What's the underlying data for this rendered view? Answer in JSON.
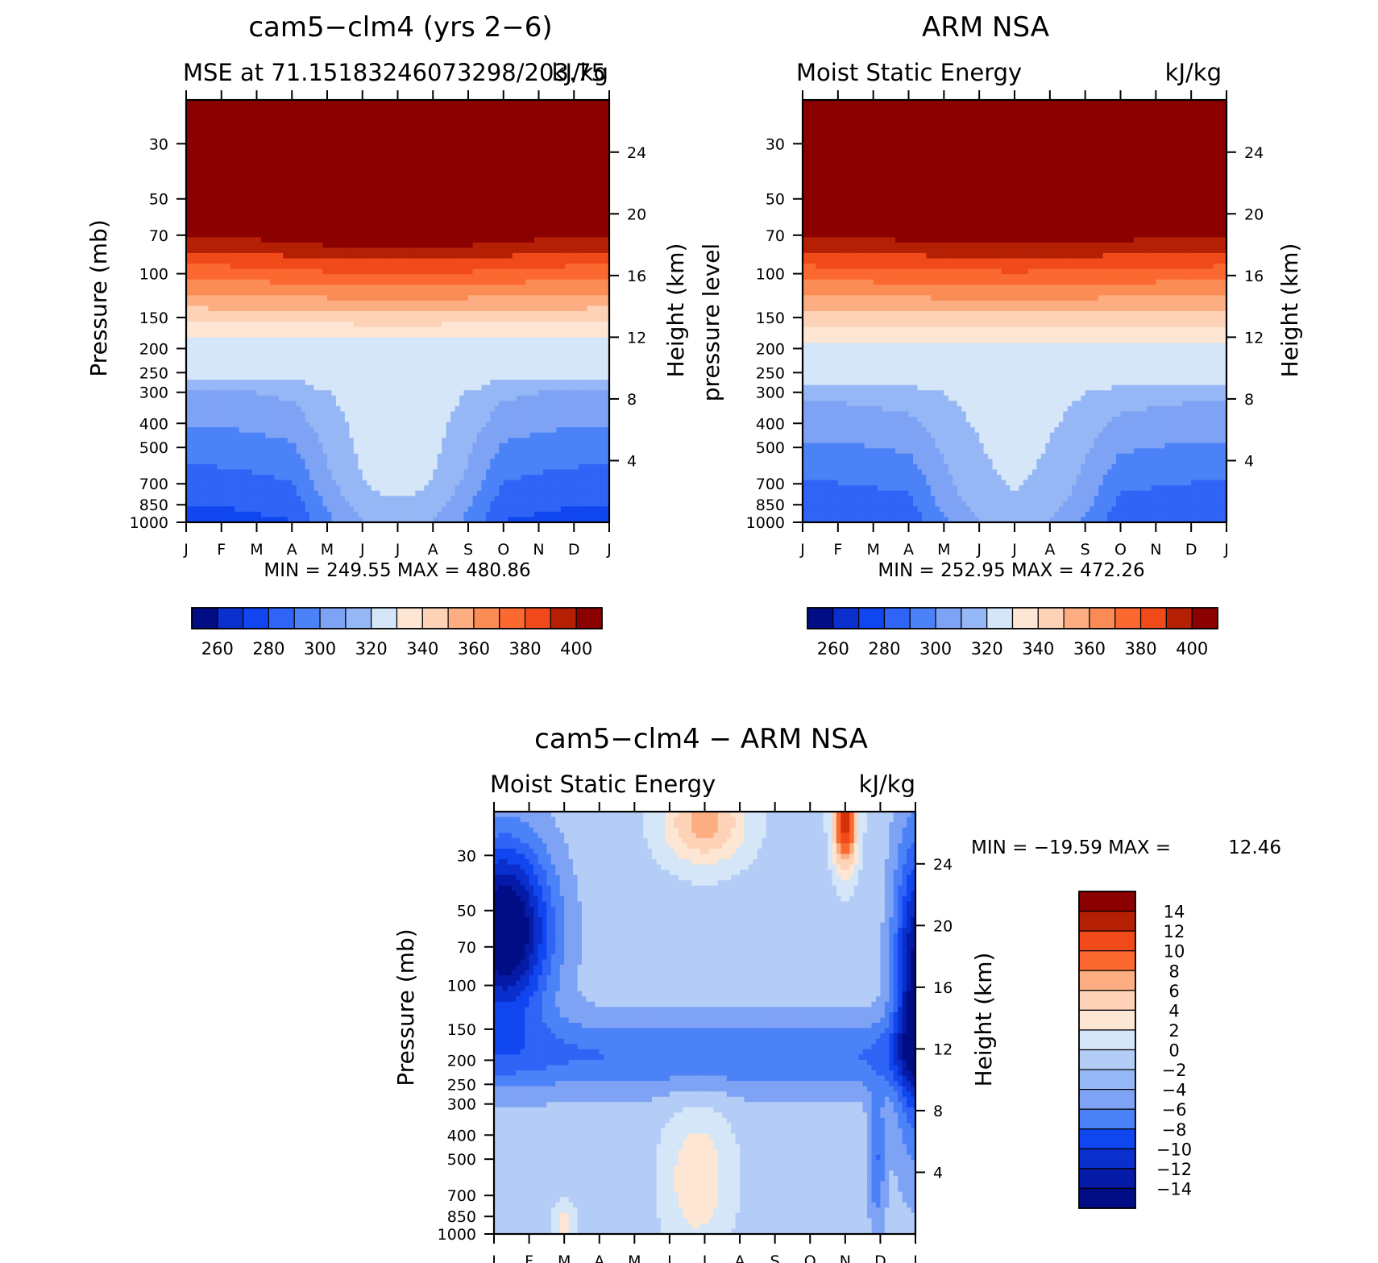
{
  "chart_data": [
    {
      "type": "heatmap",
      "id": "model",
      "title": "cam5−clm4 (yrs 2−6)",
      "subtitle_left": "MSE at 71.15183246073298/203.75",
      "subtitle_right": "kJ/kg",
      "xlabel": "",
      "ylabel": "Pressure (mb)",
      "ylabel_right": "Height (km)",
      "months": [
        "J",
        "F",
        "M",
        "A",
        "M",
        "J",
        "J",
        "A",
        "S",
        "O",
        "N",
        "D",
        "J"
      ],
      "pressure_ticks": [
        "30",
        "50",
        "70",
        "100",
        "150",
        "200",
        "250",
        "300",
        "400",
        "500",
        "700",
        "850",
        "1000"
      ],
      "pressure_values": [
        30,
        50,
        70,
        100,
        150,
        200,
        250,
        300,
        400,
        500,
        700,
        850,
        1000
      ],
      "height_ticks": [
        "24",
        "20",
        "16",
        "12",
        "8",
        "4"
      ],
      "height_values": [
        24,
        20,
        16,
        12,
        8,
        4
      ],
      "ylim": [
        20,
        1000
      ],
      "stats": "MIN = 249.55 MAX = 480.86",
      "min": 249.55,
      "max": 480.86,
      "levels": [
        250,
        260,
        270,
        280,
        290,
        300,
        310,
        320,
        330,
        340,
        350,
        360,
        370,
        380,
        390,
        400
      ],
      "colorbar_labels": [
        "260",
        "280",
        "300",
        "320",
        "340",
        "360",
        "380",
        "400"
      ],
      "contour_pressure_at_month": {
        "320": [
          180,
          185,
          190,
          195,
          205,
          215,
          220,
          215,
          205,
          195,
          190,
          185,
          180
        ],
        "300": [
          235,
          240,
          245,
          255,
          285,
          400,
          640,
          490,
          300,
          255,
          245,
          240,
          235
        ],
        "280": [
          460,
          470,
          500,
          560,
          800,
          1000,
          1000,
          1000,
          980,
          640,
          530,
          470,
          460
        ]
      }
    },
    {
      "type": "heatmap",
      "id": "obs",
      "title": "ARM NSA",
      "subtitle_left": "Moist Static Energy",
      "subtitle_right": "kJ/kg",
      "ylabel": "pressure level",
      "ylabel_right": "Height (km)",
      "months": [
        "J",
        "F",
        "M",
        "A",
        "M",
        "J",
        "J",
        "A",
        "S",
        "O",
        "N",
        "D",
        "J"
      ],
      "pressure_ticks": [
        "30",
        "50",
        "70",
        "100",
        "150",
        "200",
        "250",
        "300",
        "400",
        "500",
        "700",
        "850",
        "1000"
      ],
      "pressure_values": [
        30,
        50,
        70,
        100,
        150,
        200,
        250,
        300,
        400,
        500,
        700,
        850,
        1000
      ],
      "height_ticks": [
        "24",
        "20",
        "16",
        "12",
        "8",
        "4"
      ],
      "height_values": [
        24,
        20,
        16,
        12,
        8,
        4
      ],
      "ylim": [
        20,
        1000
      ],
      "stats": "MIN = 252.95 MAX = 472.26",
      "min": 252.95,
      "max": 472.26,
      "levels": [
        250,
        260,
        270,
        280,
        290,
        300,
        310,
        320,
        330,
        340,
        350,
        360,
        370,
        380,
        390,
        400
      ],
      "colorbar_labels": [
        "260",
        "280",
        "300",
        "320",
        "340",
        "360",
        "380",
        "400"
      ]
    },
    {
      "type": "heatmap",
      "id": "diff",
      "title": "cam5−clm4 − ARM NSA",
      "subtitle_left": "Moist Static Energy",
      "subtitle_right": "kJ/kg",
      "ylabel": "Pressure (mb)",
      "ylabel_right": "Height (km)",
      "months": [
        "J",
        "F",
        "M",
        "A",
        "M",
        "J",
        "J",
        "A",
        "S",
        "O",
        "N",
        "D",
        "J"
      ],
      "pressure_ticks": [
        "30",
        "50",
        "70",
        "100",
        "150",
        "200",
        "250",
        "300",
        "400",
        "500",
        "700",
        "850",
        "1000"
      ],
      "pressure_values": [
        30,
        50,
        70,
        100,
        150,
        200,
        250,
        300,
        400,
        500,
        700,
        850,
        1000
      ],
      "height_ticks": [
        "24",
        "20",
        "16",
        "12",
        "8",
        "4"
      ],
      "height_values": [
        24,
        20,
        16,
        12,
        8,
        4
      ],
      "ylim": [
        20,
        1000
      ],
      "stats_label": "MIN = −19.59 MAX =",
      "stats_max": "12.46",
      "min": -19.59,
      "max": 12.46,
      "levels": [
        -16,
        -14,
        -12,
        -10,
        -8,
        -6,
        -4,
        -2,
        0,
        2,
        4,
        6,
        8,
        10,
        12,
        14,
        16
      ],
      "colorbar_labels": [
        "14",
        "12",
        "10",
        "8",
        "6",
        "4",
        "2",
        "0",
        "−2",
        "−4",
        "−6",
        "−8",
        "−10",
        "−12",
        "−14"
      ]
    }
  ],
  "colors": {
    "warm": [
      "#8b0000",
      "#b52005",
      "#d7300c",
      "#f04a1a",
      "#fb6830",
      "#fc8c56",
      "#fcae82",
      "#fdd2b6",
      "#fde6d3"
    ],
    "cool": [
      "#d4e6f8",
      "#b3cdf7",
      "#96b7f5",
      "#7fa3f4",
      "#4b82f7",
      "#2f64f6",
      "#1046f0",
      "#0a2fcc",
      "#051aa6",
      "#000d85"
    ]
  }
}
